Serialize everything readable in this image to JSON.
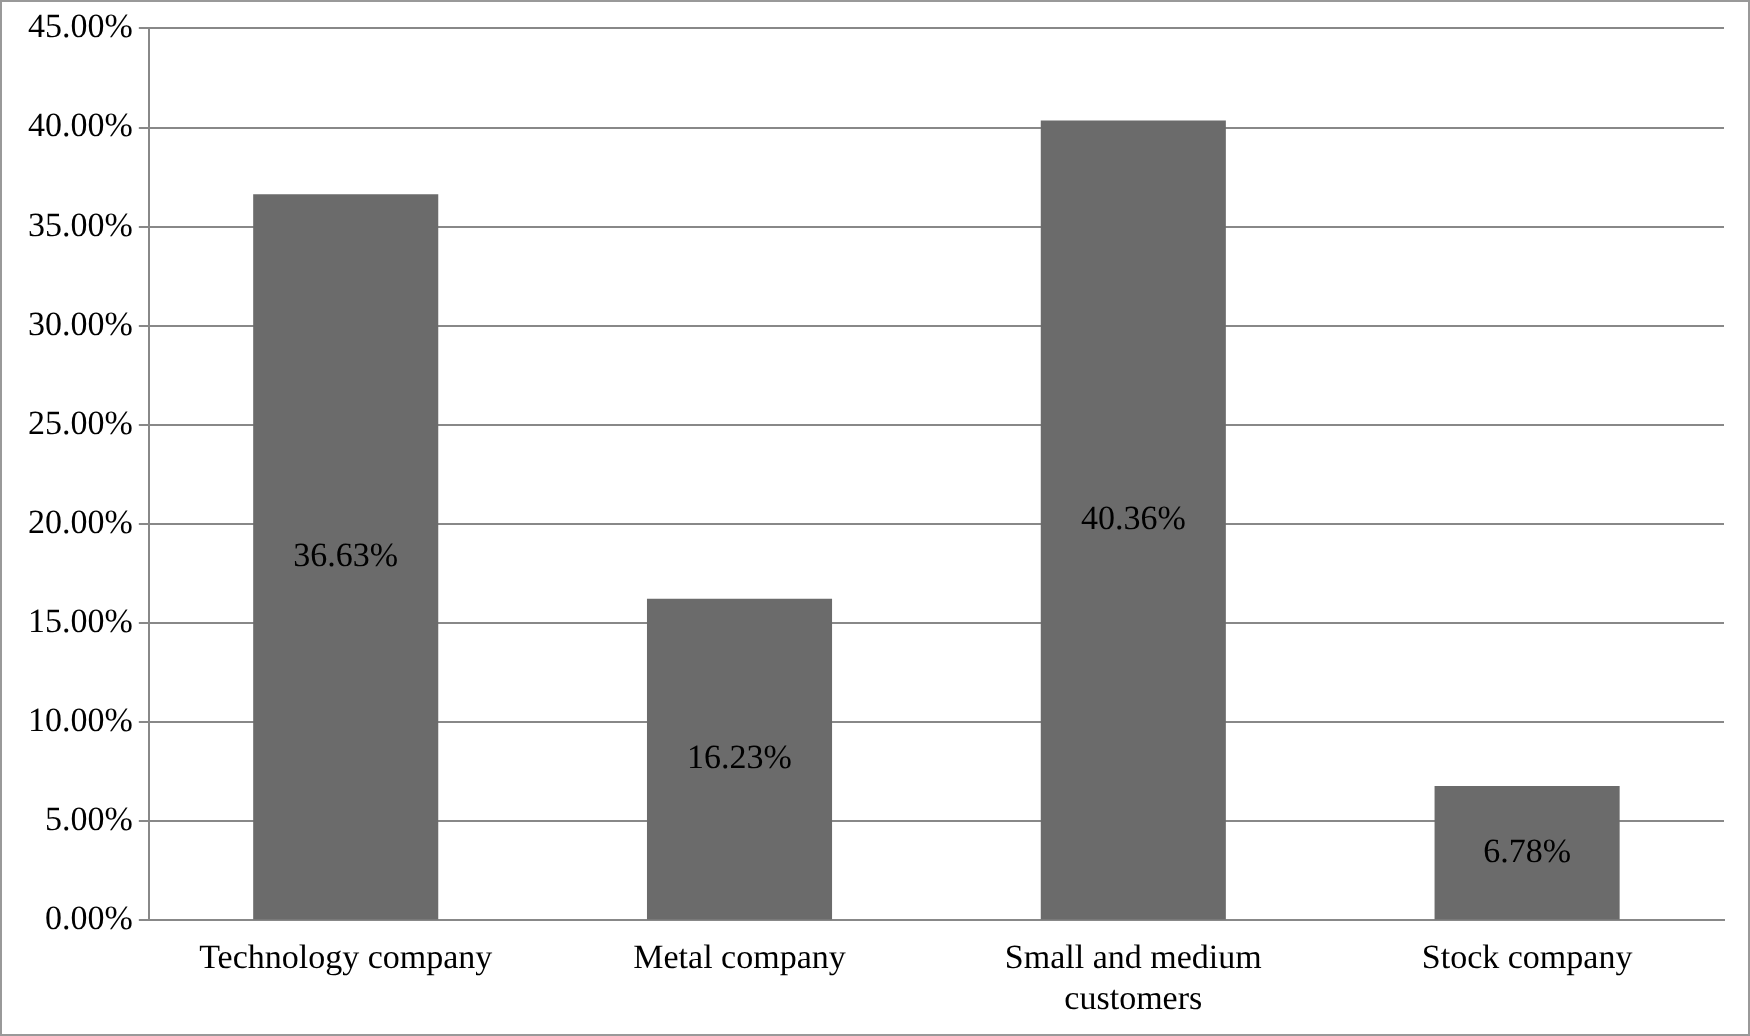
{
  "chart_data": {
    "type": "bar",
    "categories": [
      "Technology company",
      "Metal company",
      "Small and medium customers",
      "Stock company"
    ],
    "values": [
      36.63,
      16.23,
      40.36,
      6.78
    ],
    "value_labels": [
      "36.63%",
      "16.23%",
      "40.36%",
      "6.78%"
    ],
    "color": "#6b6b6b",
    "ylim": [
      0,
      45
    ],
    "yticks": [
      {
        "value": 0,
        "label": "0.00%"
      },
      {
        "value": 5,
        "label": "5.00%"
      },
      {
        "value": 10,
        "label": "10.00%"
      },
      {
        "value": 15,
        "label": "15.00%"
      },
      {
        "value": 20,
        "label": "20.00%"
      },
      {
        "value": 25,
        "label": "25.00%"
      },
      {
        "value": 30,
        "label": "30.00%"
      },
      {
        "value": 35,
        "label": "35.00%"
      },
      {
        "value": 40,
        "label": "40.00%"
      },
      {
        "value": 45,
        "label": "45.00%"
      }
    ],
    "grid": "y"
  }
}
